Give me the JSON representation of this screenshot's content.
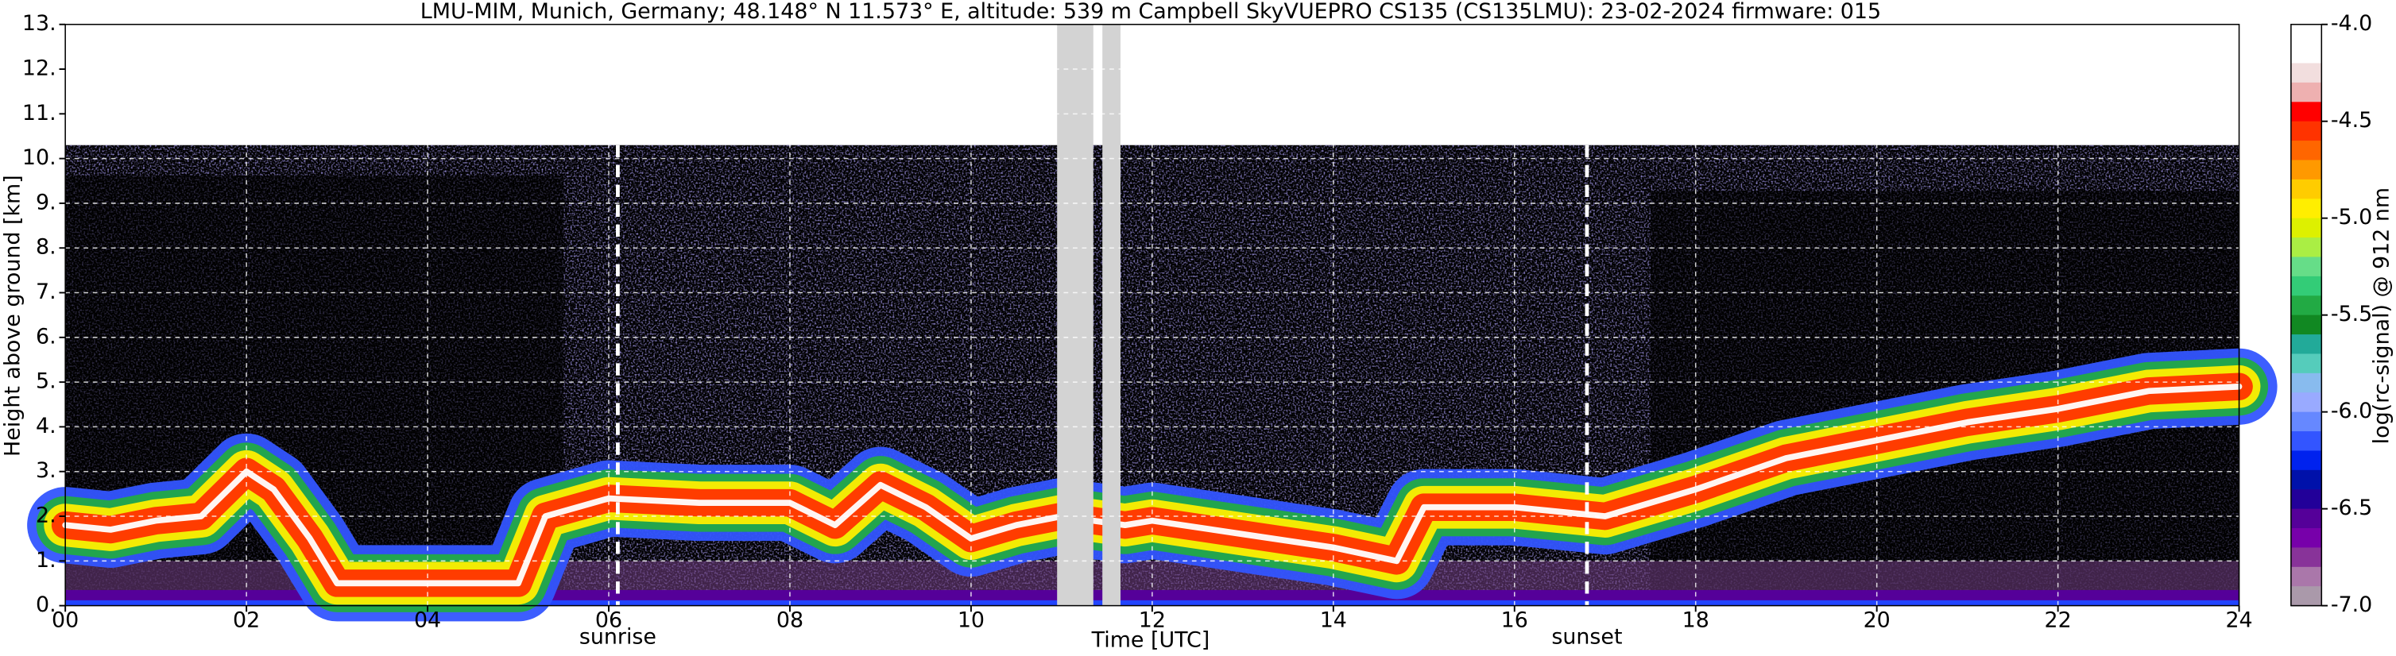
{
  "chart_data": {
    "type": "heatmap",
    "title": "LMU-MIM, Munich, Germany; 48.148° N 11.573° E, altitude: 539 m    Campbell SkyVUEPRO CS135 (CS135LMU): 23-02-2024    firmware: 015",
    "xlabel": "Time [UTC]",
    "ylabel": "Height above ground [km]",
    "xlim": [
      0,
      24
    ],
    "ylim": [
      0,
      13
    ],
    "xticks": [
      {
        "value": 0,
        "label": "00"
      },
      {
        "value": 2,
        "label": "02"
      },
      {
        "value": 4,
        "label": "04"
      },
      {
        "value": 6,
        "label": "06"
      },
      {
        "value": 8,
        "label": "08"
      },
      {
        "value": 10,
        "label": "10"
      },
      {
        "value": 12,
        "label": "12"
      },
      {
        "value": 14,
        "label": "14"
      },
      {
        "value": 16,
        "label": "16"
      },
      {
        "value": 18,
        "label": "18"
      },
      {
        "value": 20,
        "label": "20"
      },
      {
        "value": 22,
        "label": "22"
      },
      {
        "value": 24,
        "label": "24"
      }
    ],
    "yticks": [
      {
        "value": 0,
        "label": "0."
      },
      {
        "value": 1,
        "label": "1."
      },
      {
        "value": 2,
        "label": "2."
      },
      {
        "value": 3,
        "label": "3."
      },
      {
        "value": 4,
        "label": "4."
      },
      {
        "value": 5,
        "label": "5."
      },
      {
        "value": 6,
        "label": "6."
      },
      {
        "value": 7,
        "label": "7."
      },
      {
        "value": 8,
        "label": "8."
      },
      {
        "value": 9,
        "label": "9."
      },
      {
        "value": 10,
        "label": "10."
      },
      {
        "value": 11,
        "label": "11."
      },
      {
        "value": 12,
        "label": "12."
      },
      {
        "value": 13,
        "label": "13."
      }
    ],
    "grid": true,
    "data_top": 10.3,
    "x": [
      0,
      0.5,
      1,
      1.5,
      2,
      2.3,
      2.7,
      3,
      4,
      4.5,
      5,
      5.3,
      6,
      7,
      8,
      8.5,
      9,
      9.5,
      10,
      10.5,
      11,
      11.7,
      12,
      13,
      14,
      14.7,
      15,
      16,
      17,
      18,
      19,
      20,
      21,
      22,
      23,
      24
    ],
    "values": [
      1.8,
      1.7,
      1.9,
      2.0,
      3.0,
      2.6,
      1.5,
      0.5,
      0.5,
      0.5,
      0.5,
      2.0,
      2.4,
      2.3,
      2.3,
      1.8,
      2.7,
      2.2,
      1.5,
      1.8,
      2.0,
      1.8,
      1.9,
      1.6,
      1.3,
      1.0,
      2.2,
      2.2,
      2.0,
      2.6,
      3.3,
      3.7,
      4.1,
      4.4,
      4.8,
      4.9
    ],
    "gaps": [
      [
        10.95,
        11.35
      ],
      [
        11.45,
        11.65
      ]
    ],
    "annotations": [
      {
        "text": "sunrise",
        "x": 6.1
      },
      {
        "text": "sunset",
        "x": 16.8
      }
    ],
    "colorbar": {
      "label": "log(rc-signal) @ 912 nm",
      "lim": [
        -4.0,
        -7.0
      ],
      "ticks": [
        {
          "value": -4,
          "label": "-4.0"
        },
        {
          "value": -4.5,
          "label": "-4.5"
        },
        {
          "value": -5,
          "label": "-5.0"
        },
        {
          "value": -5.5,
          "label": "-5.5"
        },
        {
          "value": -6,
          "label": "-6.0"
        },
        {
          "value": -6.5,
          "label": "-6.5"
        },
        {
          "value": -7,
          "label": "-7.0"
        }
      ],
      "colors": [
        "#ffffff",
        "#ffffff",
        "#f2dede",
        "#eeb0b0",
        "#ff0000",
        "#ff3300",
        "#ff6600",
        "#ff9900",
        "#ffcc00",
        "#ffee00",
        "#ddf000",
        "#aaee44",
        "#66dd88",
        "#33cc77",
        "#22aa44",
        "#118822",
        "#22aa99",
        "#55ccbb",
        "#88bbee",
        "#99aaff",
        "#6688ff",
        "#3355ff",
        "#0022ee",
        "#0011aa",
        "#220099",
        "#550099",
        "#7700aa",
        "#883399",
        "#aa77aa",
        "#aa99aa"
      ]
    }
  }
}
